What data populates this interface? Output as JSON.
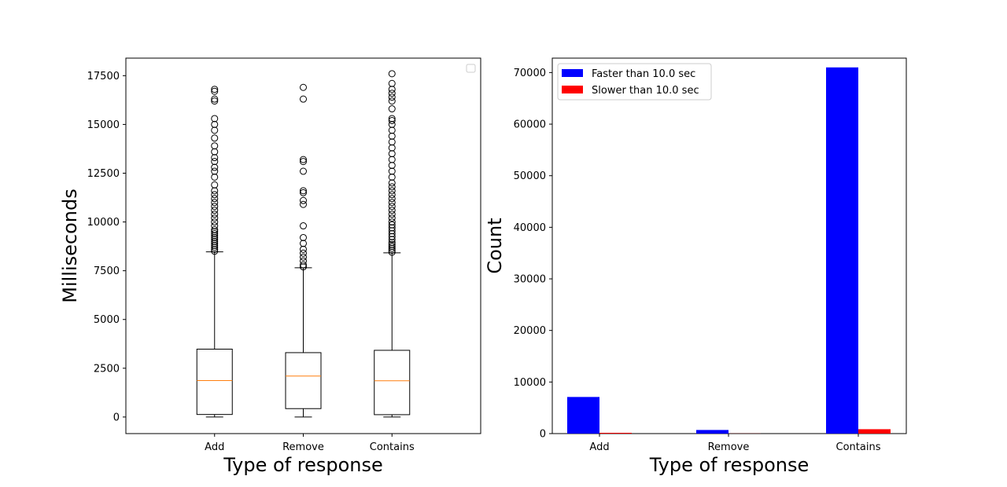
{
  "chart_data": [
    {
      "type": "box",
      "title": "",
      "xlabel": "Type of response",
      "ylabel": "Milliseconds",
      "ylim": [
        -850,
        18400
      ],
      "yticks": [
        0,
        2500,
        5000,
        7500,
        10000,
        12500,
        15000,
        17500
      ],
      "ytick_labels": [
        "0",
        "2500",
        "5000",
        "7500",
        "10000",
        "12500",
        "15000",
        "17500"
      ],
      "legend": {
        "entries": [],
        "placement": "top-right"
      },
      "grid": false,
      "categories": [
        "Add",
        "Remove",
        "Contains"
      ],
      "boxes": [
        {
          "category": "Add",
          "whisker_low": 0,
          "q1": 130,
          "median": 1870,
          "q3": 3480,
          "whisker_high": 8470,
          "outliers": [
            8500,
            8600,
            8700,
            8800,
            8900,
            9000,
            9100,
            9200,
            9300,
            9400,
            9500,
            9600,
            9800,
            10000,
            10200,
            10400,
            10600,
            10800,
            11000,
            11200,
            11400,
            11600,
            11900,
            12300,
            12600,
            12800,
            13100,
            13300,
            13600,
            13900,
            14300,
            14700,
            15000,
            15300,
            16200,
            16300,
            16700,
            16800
          ]
        },
        {
          "category": "Remove",
          "whisker_low": 0,
          "q1": 430,
          "median": 2100,
          "q3": 3300,
          "whisker_high": 7650,
          "outliers": [
            7700,
            7800,
            8000,
            8200,
            8400,
            8600,
            8900,
            9200,
            9800,
            10900,
            11100,
            11500,
            11600,
            12600,
            13100,
            13200,
            16300,
            16900
          ]
        },
        {
          "category": "Contains",
          "whisker_low": 0,
          "q1": 120,
          "median": 1860,
          "q3": 3420,
          "whisker_high": 8420,
          "outliers": [
            8450,
            8550,
            8650,
            8750,
            8850,
            8950,
            9100,
            9250,
            9400,
            9550,
            9700,
            9850,
            10000,
            10200,
            10400,
            10600,
            10800,
            11000,
            11200,
            11400,
            11600,
            11800,
            12000,
            12300,
            12600,
            12900,
            13200,
            13500,
            13800,
            14100,
            14400,
            14700,
            15000,
            15200,
            15300,
            15800,
            16200,
            16400,
            16600,
            16800,
            17100,
            17600
          ]
        }
      ]
    },
    {
      "type": "bar",
      "title": "",
      "xlabel": "Type of response",
      "ylabel": "Count",
      "ylim": [
        0,
        72800
      ],
      "yticks": [
        0,
        10000,
        20000,
        30000,
        40000,
        50000,
        60000,
        70000
      ],
      "ytick_labels": [
        "0",
        "10000",
        "20000",
        "30000",
        "40000",
        "50000",
        "60000",
        "70000"
      ],
      "categories": [
        "Add",
        "Remove",
        "Contains"
      ],
      "grid": false,
      "legend": {
        "placement": "top-left"
      },
      "series": [
        {
          "name": "Faster than 10.0 sec",
          "color": "#0000ff",
          "values": [
            7100,
            700,
            71000
          ]
        },
        {
          "name": "Slower than 10.0 sec",
          "color": "#ff0000",
          "values": [
            150,
            20,
            850
          ]
        }
      ]
    }
  ],
  "colors": {
    "median": "#ff7f0e",
    "frame": "#000000",
    "background": "#ffffff"
  }
}
